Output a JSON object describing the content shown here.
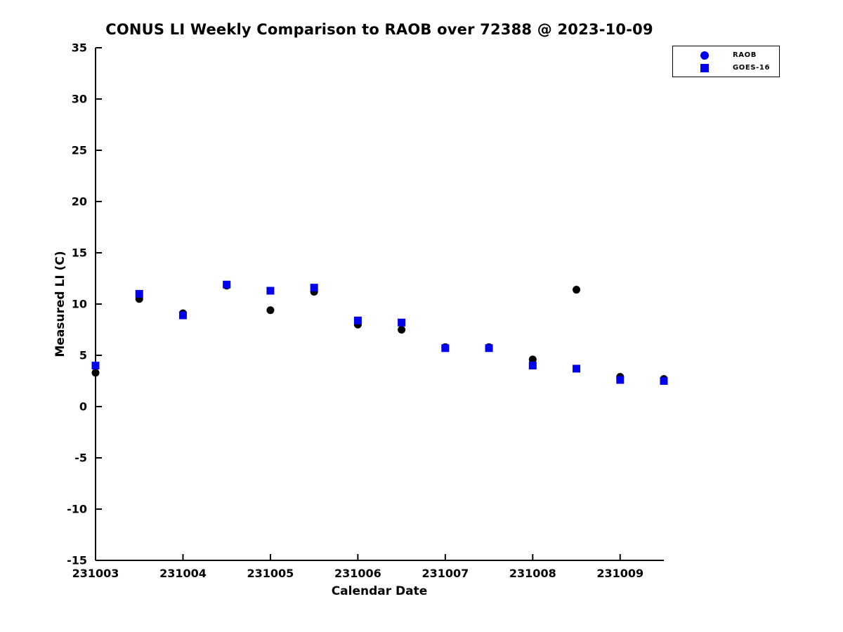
{
  "chart_data": {
    "type": "scatter",
    "title": "CONUS LI Weekly Comparison to RAOB over 72388 @ 2023-10-09",
    "xlabel": "Calendar Date",
    "ylabel": "Measured LI (C)",
    "xlim": [
      231003,
      231009.5
    ],
    "ylim": [
      -15,
      35
    ],
    "x_ticks": [
      231003,
      231004,
      231005,
      231006,
      231007,
      231008,
      231009
    ],
    "y_ticks": [
      -15,
      -10,
      -5,
      0,
      5,
      10,
      15,
      20,
      25,
      30,
      35
    ],
    "grid": false,
    "legend_position": "top-right",
    "axis_color": "#000000",
    "background_color": "#ffffff",
    "series": [
      {
        "name": "RAOB",
        "marker": "circle",
        "plot_color": "#000000",
        "legend_color": "#0000ee",
        "x": [
          231003,
          231003.5,
          231004,
          231004.5,
          231005,
          231005.5,
          231006,
          231006.5,
          231007,
          231007.5,
          231008,
          231008.5,
          231009,
          231009.5
        ],
        "y": [
          3.3,
          10.5,
          9.1,
          11.8,
          9.4,
          11.2,
          8.0,
          7.5,
          5.8,
          5.8,
          4.6,
          11.4,
          2.9,
          2.7
        ]
      },
      {
        "name": "GOES-16",
        "marker": "square",
        "plot_color": "#0000ee",
        "legend_color": "#0000ee",
        "x": [
          231003,
          231003.5,
          231004,
          231004.5,
          231005,
          231005.5,
          231006,
          231006.5,
          231007,
          231007.5,
          231008,
          231008.5,
          231009,
          231009.5
        ],
        "y": [
          4.0,
          11.0,
          8.9,
          11.9,
          11.3,
          11.6,
          8.4,
          8.2,
          5.7,
          5.7,
          4.0,
          3.7,
          2.6,
          2.5
        ]
      }
    ]
  }
}
